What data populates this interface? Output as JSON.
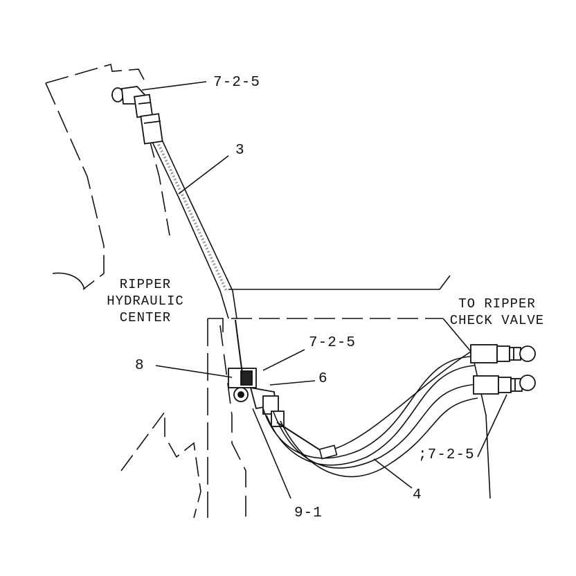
{
  "callouts": {
    "top_fitting": "7-2-5",
    "hose_upper": "3",
    "fitting_mid": "7-2-5",
    "clamp": "8",
    "bracket": "6",
    "fittings_right": ";7-2-5",
    "hose_lower": "4",
    "bolt": "9-1"
  },
  "captions": {
    "ripper_center": [
      "RIPPER",
      "HYDRAULIC",
      "CENTER"
    ],
    "check_valve": [
      "TO RIPPER",
      "CHECK VALVE"
    ]
  }
}
